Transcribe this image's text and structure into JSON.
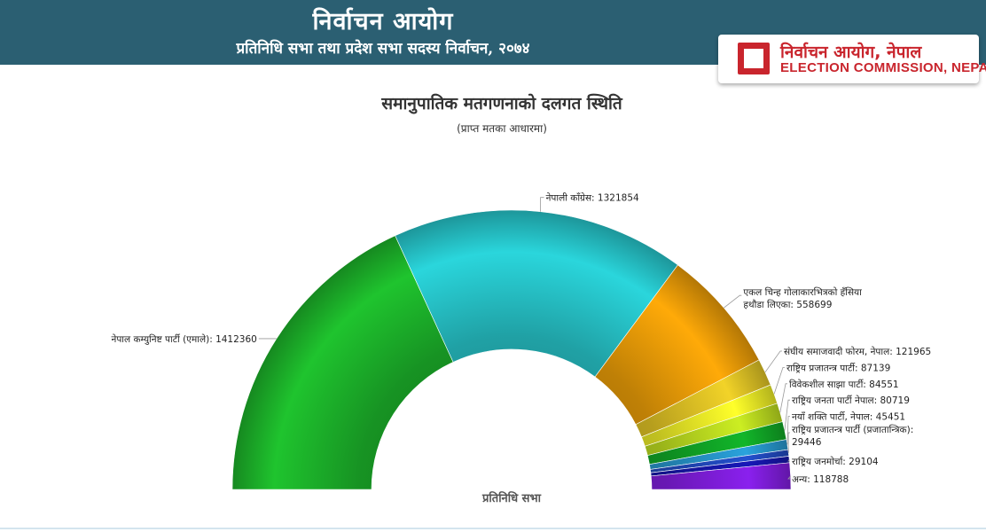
{
  "header": {
    "title": "निर्वाचन आयोग",
    "subtitle": "प्रतिनिधि सभा तथा प्रदेश सभा सदस्य निर्वाचन, २०७४"
  },
  "badge": {
    "name_np": "निर्वाचन आयोग, नेपाल",
    "name_en": "ELECTION COMMISSION, NEPAL",
    "color": "#c9252d"
  },
  "chart_data": {
    "type": "pie",
    "variant": "semi-donut",
    "title": "समानुपातिक मतगणनाको दलगत स्थिति",
    "subtitle": "(प्राप्त मतका आधारमा)",
    "center_label": "प्रतिनिधि सभा",
    "slices": [
      {
        "label": "नेपाल कम्युनिष्ट पार्टी (एमाले)",
        "value": 1412360,
        "color": "#1fc42e"
      },
      {
        "label": "नेपाली काँग्रेस",
        "value": 1321854,
        "color": "#2ad6dc"
      },
      {
        "label": "एकल चिन्ह गोलाकारभित्रको हँसिया हथौडा लिएका",
        "value": 558699,
        "color": "#ffaa08"
      },
      {
        "label": "संघीय समाजवादी फोरम, नेपाल",
        "value": 121965,
        "color": "#f2d328"
      },
      {
        "label": "राष्ट्रिय प्रजातन्त्र पार्टी",
        "value": 87139,
        "color": "#ffff2a"
      },
      {
        "label": "विवेकशील साझा पार्टी",
        "value": 84551,
        "color": "#ccee22"
      },
      {
        "label": "राष्ट्रिय जनता पार्टी नेपाल",
        "value": 80719,
        "color": "#12b62a"
      },
      {
        "label": "नयाँ शक्ति पार्टी, नेपाल",
        "value": 45451,
        "color": "#2aa3dd"
      },
      {
        "label": "राष्ट्रिय प्रजातन्त्र पार्टी (प्रजातान्त्रिक)",
        "value": 29446,
        "color": "#2450cf"
      },
      {
        "label": "राष्ट्रिय जनमोर्चा",
        "value": 29104,
        "color": "#1818b8"
      },
      {
        "label": "अन्य",
        "value": 118788,
        "color": "#8a20ee"
      }
    ]
  }
}
